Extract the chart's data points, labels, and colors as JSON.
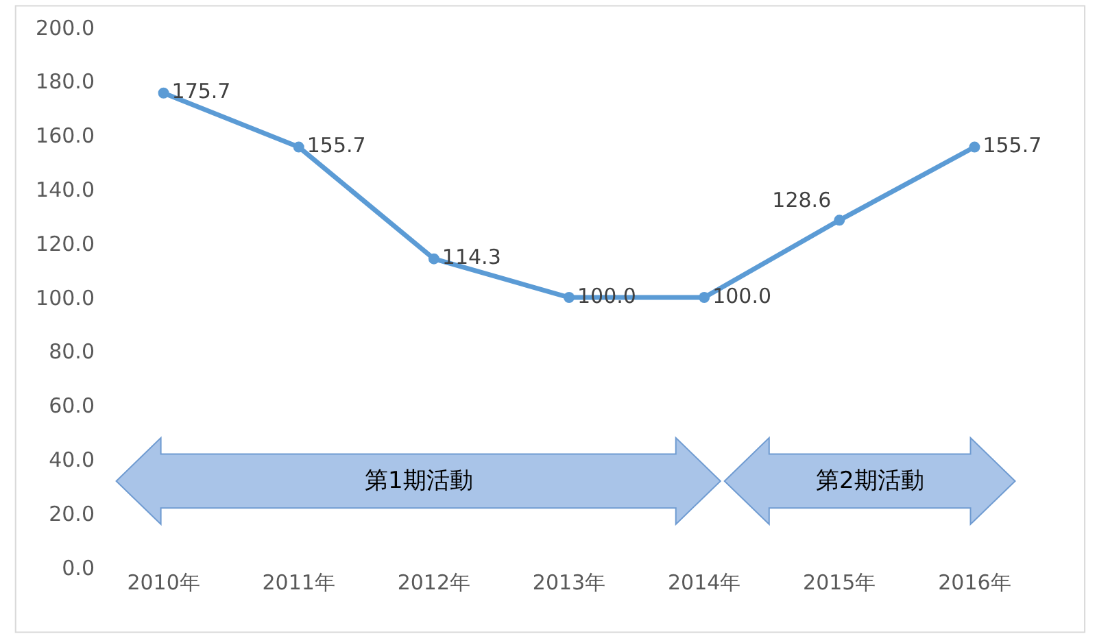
{
  "chart_data": {
    "type": "line",
    "categories": [
      "2010年",
      "2011年",
      "2012年",
      "2013年",
      "2014年",
      "2015年",
      "2016年"
    ],
    "series": [
      {
        "color": "#5b9bd5",
        "values": [
          175.7,
          155.7,
          114.3,
          100.0,
          100.0,
          128.6,
          155.7
        ]
      }
    ],
    "value_labels": [
      "175.7",
      "155.7",
      "114.3",
      "100.0",
      "100.0",
      "128.6",
      "155.7"
    ],
    "ylim": [
      0,
      200
    ],
    "yticks": [
      {
        "value": 0,
        "label": "0.0"
      },
      {
        "value": 20,
        "label": "20.0"
      },
      {
        "value": 40,
        "label": "40.0"
      },
      {
        "value": 60,
        "label": "60.0"
      },
      {
        "value": 80,
        "label": "80.0"
      },
      {
        "value": 100,
        "label": "100.0"
      },
      {
        "value": 120,
        "label": "120.0"
      },
      {
        "value": 140,
        "label": "140.0"
      },
      {
        "value": 160,
        "label": "160.0"
      },
      {
        "value": 180,
        "label": "180.0"
      },
      {
        "value": 200,
        "label": "200.0"
      }
    ],
    "annotations": [
      "第1期活動",
      "第2期活動"
    ],
    "grid": false,
    "marker": "circle",
    "line_style": "solid"
  }
}
